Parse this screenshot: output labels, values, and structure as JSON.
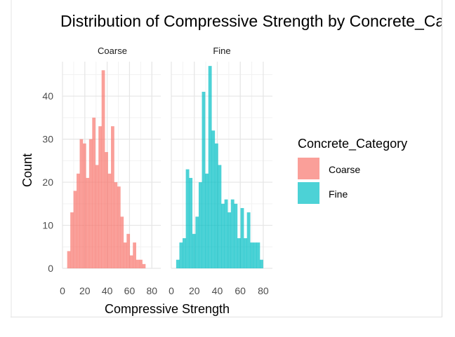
{
  "chart_data": {
    "type": "histogram",
    "title": "Distribution of Compressive Strength by Concrete_Category",
    "xlabel": "Compressive Strength",
    "ylabel": "Count",
    "xlim": [
      0,
      88
    ],
    "ylim": [
      0,
      48
    ],
    "x_ticks": [
      0,
      20,
      40,
      60,
      80
    ],
    "y_ticks": [
      0,
      10,
      20,
      30,
      40
    ],
    "grid": true,
    "facets": [
      "Coarse",
      "Fine"
    ],
    "bin_width": 2.8,
    "bin_start": 4.2,
    "legend": {
      "title": "Concrete_Category",
      "placement": "right",
      "items": [
        {
          "label": "Coarse",
          "color": "#F8766D"
        },
        {
          "label": "Fine",
          "color": "#00BFC4"
        }
      ]
    },
    "series": [
      {
        "name": "Coarse",
        "color": "#F8766D",
        "counts": [
          4,
          13,
          18,
          22,
          30,
          29,
          21,
          30,
          35,
          24,
          33,
          46,
          27,
          22,
          33,
          20,
          19,
          12,
          6,
          8,
          3,
          6,
          2,
          2,
          1
        ]
      },
      {
        "name": "Fine",
        "color": "#00BFC4",
        "counts": [
          2,
          6,
          7,
          23,
          21,
          8,
          12,
          20,
          41,
          22,
          47,
          32,
          29,
          24,
          15,
          16,
          13,
          16,
          15,
          7,
          14,
          7,
          13,
          6,
          6,
          6,
          2
        ]
      }
    ]
  },
  "title_text": "Distribution of Compressive Strength by Concrete_Category",
  "xlabel_text": "Compressive Strength",
  "ylabel_text": "Count",
  "legend_title_text": "Concrete_Category",
  "legend_items": [
    "Coarse",
    "Fine"
  ],
  "facet_labels": [
    "Coarse",
    "Fine"
  ]
}
